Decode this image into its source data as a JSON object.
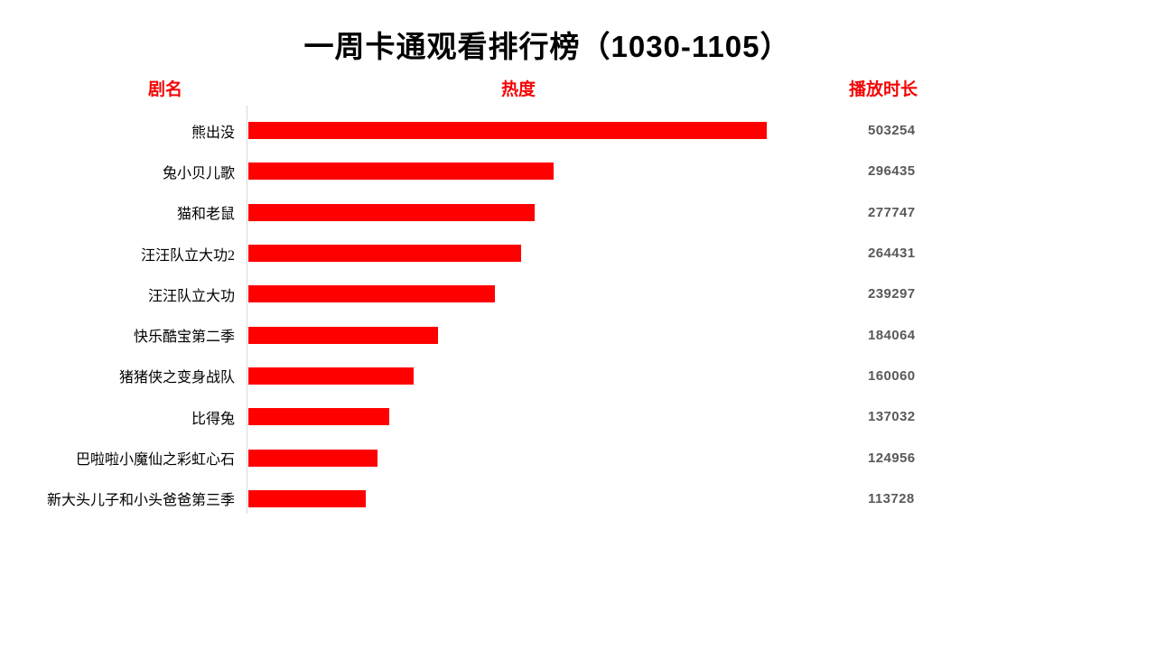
{
  "title": "一周卡通观看排行榜（1030-1105）",
  "headers": {
    "name": "剧名",
    "heat": "热度",
    "duration": "播放时长"
  },
  "colors": {
    "bar_red": "#fe0000",
    "header_red": "#f40505",
    "value_gray": "#595959",
    "axis_line_gray": "#d9d9d9",
    "title_black": "#000000",
    "background": "#ffffff"
  },
  "chart_data": {
    "type": "bar",
    "orientation": "horizontal",
    "title": "一周卡通观看排行榜（1030-1105）",
    "categories_label": "剧名",
    "series_label": "热度",
    "value_column_label": "播放时长",
    "categories": [
      "熊出没",
      "兔小贝儿歌",
      "猫和老鼠",
      "汪汪队立大功2",
      "汪汪队立大功",
      "快乐酷宝第二季",
      "猪猪侠之变身战队",
      "比得兔",
      "巴啦啦小魔仙之彩虹心石",
      "新大头儿子和小头爸爸第三季"
    ],
    "values": [
      503254,
      296435,
      277747,
      264431,
      239297,
      184064,
      160060,
      137032,
      124956,
      113728
    ],
    "xlim": [
      0,
      503254
    ],
    "grid": false,
    "legend": "none",
    "bars_sorted": "descending"
  }
}
